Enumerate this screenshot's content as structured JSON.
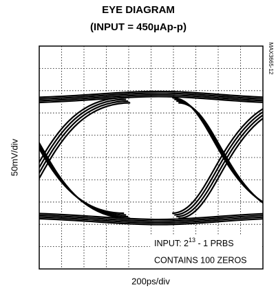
{
  "header": {
    "title": "EYE DIAGRAM",
    "subtitle": "(INPUT = 450µAp-p)",
    "part_code": "MAX3665-12"
  },
  "axes": {
    "vertical": "50mV/div",
    "horizontal": "200ps/div"
  },
  "annotation": {
    "line1": {
      "prefix": "INPUT:  2",
      "exponent": "13",
      "suffix": " - 1 PRBS"
    },
    "line2": "CONTAINS 100 ZEROS"
  }
}
